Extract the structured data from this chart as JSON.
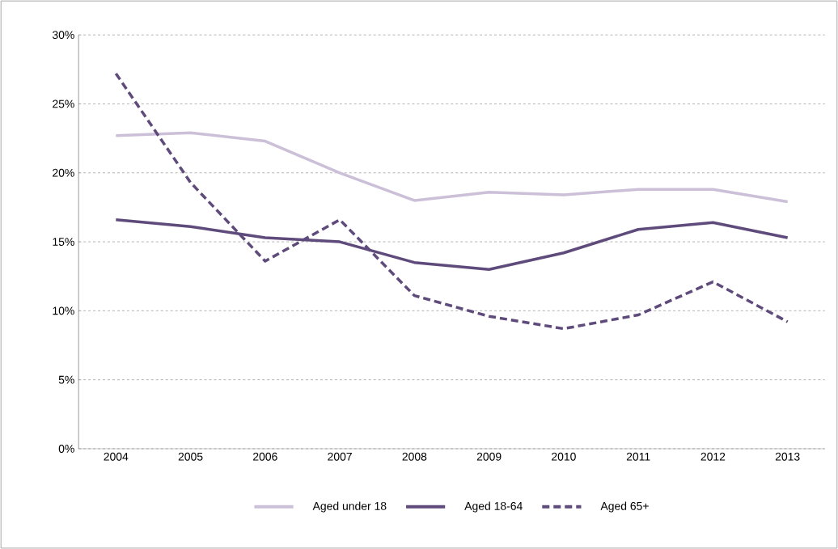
{
  "chart_data": {
    "type": "line",
    "categories": [
      "2004",
      "2005",
      "2006",
      "2007",
      "2008",
      "2009",
      "2010",
      "2011",
      "2012",
      "2013"
    ],
    "series": [
      {
        "name": "Aged under 18",
        "color": "#cbc0d8",
        "line_style": "solid",
        "values": [
          22.7,
          22.9,
          22.3,
          20.0,
          18.0,
          18.6,
          18.4,
          18.8,
          18.8,
          17.9
        ]
      },
      {
        "name": "Aged 18-64",
        "color": "#5f4b7b",
        "line_style": "solid",
        "values": [
          16.6,
          16.1,
          15.3,
          15.0,
          13.5,
          13.0,
          14.2,
          15.9,
          16.4,
          15.3
        ]
      },
      {
        "name": "Aged 65+",
        "color": "#5f4b7b",
        "line_style": "dashed",
        "values": [
          27.2,
          19.3,
          13.6,
          16.6,
          11.1,
          9.6,
          8.7,
          9.7,
          12.1,
          9.2
        ]
      }
    ],
    "ylim": [
      0,
      30
    ],
    "yticks": [
      {
        "value": 0,
        "label": "0%"
      },
      {
        "value": 5,
        "label": "5%"
      },
      {
        "value": 10,
        "label": "10%"
      },
      {
        "value": 15,
        "label": "15%"
      },
      {
        "value": 20,
        "label": "20%"
      },
      {
        "value": 25,
        "label": "25%"
      },
      {
        "value": 30,
        "label": "30%"
      }
    ],
    "grid": "y",
    "legend": "bottom"
  }
}
